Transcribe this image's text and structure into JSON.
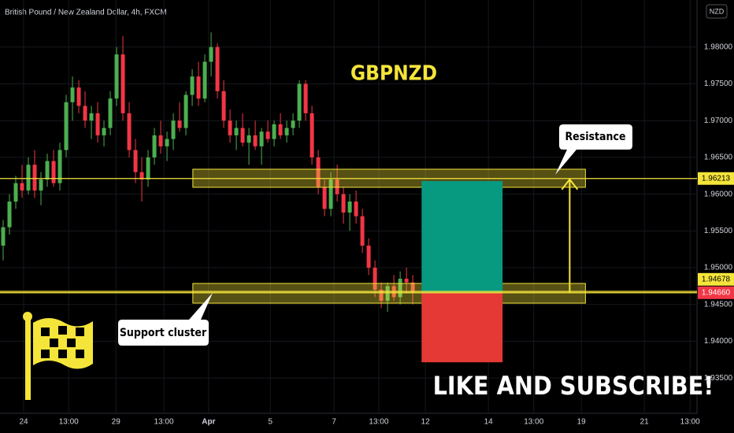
{
  "chart_data": {
    "type": "candlestick",
    "title": "British Pound / New Zealand Dollar, 4h, FXCM",
    "currency": "NZD",
    "annotations": {
      "symbol": "GBPNZD",
      "resistance": "Resistance",
      "support": "Support cluster",
      "cta": "LIKE AND SUBSCRIBE!"
    },
    "up_color": "#4caf50",
    "down_color": "#f23645",
    "xlim": [
      -0.5,
      110.1
    ],
    "ylim": [
      1.9302,
      1.9864
    ],
    "yticks": [
      {
        "value": 1.935,
        "label": "1.93500"
      },
      {
        "value": 1.94,
        "label": "1.94000"
      },
      {
        "value": 1.945,
        "label": "1.94500"
      },
      {
        "value": 1.95,
        "label": "1.95000"
      },
      {
        "value": 1.955,
        "label": "1.95500"
      },
      {
        "value": 1.96,
        "label": "1.96000"
      },
      {
        "value": 1.965,
        "label": "1.96500"
      },
      {
        "value": 1.97,
        "label": "1.97000"
      },
      {
        "value": 1.975,
        "label": "1.97500"
      },
      {
        "value": 1.98,
        "label": "1.98000"
      }
    ],
    "xticks": [
      {
        "value": 3.25,
        "label": "24"
      },
      {
        "value": 10.4,
        "label": "13:00"
      },
      {
        "value": 17.9,
        "label": "29"
      },
      {
        "value": 25.5,
        "label": "13:00"
      },
      {
        "value": 32.6,
        "label": "Apr"
      },
      {
        "value": 42.4,
        "label": "5"
      },
      {
        "value": 52.5,
        "label": "7"
      },
      {
        "value": 59.6,
        "label": "13:00"
      },
      {
        "value": 67,
        "label": "12"
      },
      {
        "value": 77,
        "label": "14"
      },
      {
        "value": 84.2,
        "label": "13:00"
      },
      {
        "value": 91.75,
        "label": "19"
      },
      {
        "value": 101.75,
        "label": "21"
      },
      {
        "value": 109,
        "label": "13:00"
      }
    ],
    "candles": [
      [
        1.953,
        1.9565,
        1.951,
        1.9555
      ],
      [
        1.9555,
        1.96,
        1.9545,
        1.959
      ],
      [
        1.959,
        1.9625,
        1.958,
        1.9615
      ],
      [
        1.9615,
        1.964,
        1.9595,
        1.9605
      ],
      [
        1.9605,
        1.965,
        1.96,
        1.964
      ],
      [
        1.964,
        1.966,
        1.9595,
        1.9605
      ],
      [
        1.9605,
        1.963,
        1.9585,
        1.962
      ],
      [
        1.962,
        1.9655,
        1.961,
        1.9645
      ],
      [
        1.9645,
        1.966,
        1.961,
        1.9615
      ],
      [
        1.9615,
        1.967,
        1.9605,
        1.966
      ],
      [
        1.966,
        1.9735,
        1.965,
        1.9725
      ],
      [
        1.9725,
        1.976,
        1.97,
        1.9745
      ],
      [
        1.9745,
        1.9755,
        1.971,
        1.972
      ],
      [
        1.972,
        1.974,
        1.969,
        1.97
      ],
      [
        1.97,
        1.972,
        1.9675,
        1.971
      ],
      [
        1.971,
        1.9725,
        1.967,
        1.968
      ],
      [
        1.968,
        1.97,
        1.9665,
        1.969
      ],
      [
        1.969,
        1.974,
        1.968,
        1.973
      ],
      [
        1.973,
        1.98,
        1.972,
        1.979
      ],
      [
        1.979,
        1.9815,
        1.97,
        1.971
      ],
      [
        1.971,
        1.9725,
        1.965,
        1.966
      ],
      [
        1.966,
        1.9675,
        1.9615,
        1.963
      ],
      [
        1.963,
        1.965,
        1.959,
        1.962
      ],
      [
        1.962,
        1.966,
        1.961,
        1.965
      ],
      [
        1.965,
        1.969,
        1.964,
        1.968
      ],
      [
        1.968,
        1.97,
        1.9655,
        1.9665
      ],
      [
        1.9665,
        1.9685,
        1.9645,
        1.9675
      ],
      [
        1.9675,
        1.971,
        1.966,
        1.97
      ],
      [
        1.97,
        1.9725,
        1.9685,
        1.969
      ],
      [
        1.969,
        1.974,
        1.968,
        1.9735
      ],
      [
        1.9735,
        1.977,
        1.972,
        1.976
      ],
      [
        1.976,
        1.978,
        1.972,
        1.973
      ],
      [
        1.973,
        1.979,
        1.9725,
        1.978
      ],
      [
        1.978,
        1.982,
        1.976,
        1.98
      ],
      [
        1.98,
        1.9805,
        1.973,
        1.974
      ],
      [
        1.974,
        1.9755,
        1.969,
        1.97
      ],
      [
        1.97,
        1.9715,
        1.967,
        1.968
      ],
      [
        1.968,
        1.97,
        1.966,
        1.969
      ],
      [
        1.969,
        1.971,
        1.9665,
        1.967
      ],
      [
        1.967,
        1.969,
        1.964,
        1.968
      ],
      [
        1.968,
        1.97,
        1.966,
        1.9665
      ],
      [
        1.9665,
        1.969,
        1.964,
        1.9685
      ],
      [
        1.9685,
        1.97,
        1.967,
        1.9675
      ],
      [
        1.9675,
        1.97,
        1.9665,
        1.9695
      ],
      [
        1.9695,
        1.971,
        1.9675,
        1.968
      ],
      [
        1.968,
        1.97,
        1.967,
        1.969
      ],
      [
        1.969,
        1.971,
        1.968,
        1.97
      ],
      [
        1.97,
        1.9755,
        1.969,
        1.975
      ],
      [
        1.975,
        1.9755,
        1.97,
        1.971
      ],
      [
        1.971,
        1.972,
        1.964,
        1.965
      ],
      [
        1.965,
        1.966,
        1.96,
        1.961
      ],
      [
        1.961,
        1.962,
        1.957,
        1.958
      ],
      [
        1.958,
        1.963,
        1.957,
        1.962
      ],
      [
        1.962,
        1.964,
        1.959,
        1.96
      ],
      [
        1.96,
        1.961,
        1.956,
        1.9575
      ],
      [
        1.9575,
        1.96,
        1.955,
        1.959
      ],
      [
        1.959,
        1.9605,
        1.956,
        1.957
      ],
      [
        1.957,
        1.958,
        1.952,
        1.953
      ],
      [
        1.953,
        1.954,
        1.949,
        1.95
      ],
      [
        1.95,
        1.951,
        1.946,
        1.947
      ],
      [
        1.947,
        1.948,
        1.9445,
        1.9455
      ],
      [
        1.9455,
        1.948,
        1.944,
        1.9475
      ],
      [
        1.9475,
        1.949,
        1.9455,
        1.946
      ],
      [
        1.946,
        1.9495,
        1.945,
        1.9485
      ],
      [
        1.9485,
        1.95,
        1.9465,
        1.948
      ],
      [
        1.948,
        1.949,
        1.945,
        1.9466
      ]
    ],
    "zones": [
      {
        "x": [
          30.1,
          92.4
        ],
        "y": [
          1.96093,
          1.96339
        ],
        "color": "#f5e53a"
      },
      {
        "x": [
          30.1,
          92.4
        ],
        "y": [
          1.94518,
          1.94786
        ],
        "color": "#f5e53a"
      }
    ],
    "position": {
      "x": [
        66.4,
        79.25
      ],
      "entry": 1.9466,
      "target": 1.96178,
      "stop": 1.93714,
      "profit_color": "#089981",
      "loss_color": "#e53935"
    },
    "arrow": {
      "x": 89.9,
      "y": [
        1.9466,
        1.96213
      ],
      "color": "#f5e53a"
    },
    "price_lines": [
      {
        "value": 1.96213,
        "label": "1.96213",
        "color": "#f5e53a",
        "text_color": "#000000"
      },
      {
        "value": 1.9466,
        "label": "1.94660",
        "color": "#f23645",
        "text_color": "#ffffff"
      },
      {
        "value": 1.94678,
        "label": "1.94678",
        "color": "#f5e53a",
        "text_color": "#000000"
      }
    ]
  }
}
